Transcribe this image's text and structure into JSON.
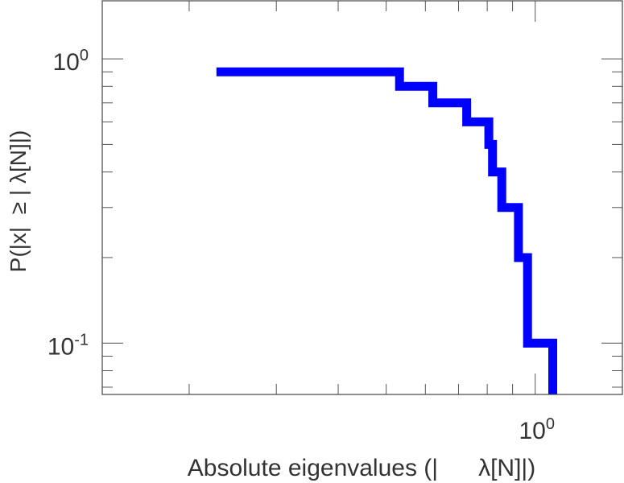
{
  "chart_data": {
    "type": "line",
    "step": true,
    "scale": {
      "x": "log",
      "y": "log"
    },
    "xlim": [
      0.1335,
      1.5
    ],
    "ylim": [
      0.066,
      1.6
    ],
    "xlabel": "Absolute eigenvalues (|      λ[N]|)",
    "ylabel": "P(|x|  ≥ | λ[N]|)",
    "grid": false,
    "x_ticks": [
      {
        "value": 1,
        "base": "10",
        "exp": "0"
      }
    ],
    "y_ticks": [
      {
        "value": 1,
        "base": "10",
        "exp": "0"
      },
      {
        "value": 0.1,
        "base": "10",
        "exp": "-1"
      }
    ],
    "series": [
      {
        "color": "#0000ff",
        "points": [
          {
            "x": 0.227,
            "y": 0.9
          },
          {
            "x": 0.532,
            "y": 0.9
          },
          {
            "x": 0.532,
            "y": 0.8
          },
          {
            "x": 0.621,
            "y": 0.8
          },
          {
            "x": 0.621,
            "y": 0.7
          },
          {
            "x": 0.727,
            "y": 0.7
          },
          {
            "x": 0.727,
            "y": 0.6
          },
          {
            "x": 0.806,
            "y": 0.6
          },
          {
            "x": 0.806,
            "y": 0.5
          },
          {
            "x": 0.82,
            "y": 0.5
          },
          {
            "x": 0.82,
            "y": 0.4
          },
          {
            "x": 0.856,
            "y": 0.4
          },
          {
            "x": 0.856,
            "y": 0.3
          },
          {
            "x": 0.925,
            "y": 0.3
          },
          {
            "x": 0.925,
            "y": 0.2
          },
          {
            "x": 0.965,
            "y": 0.2
          },
          {
            "x": 0.965,
            "y": 0.1
          },
          {
            "x": 1.085,
            "y": 0.1
          },
          {
            "x": 1.085,
            "y": 0.066
          }
        ]
      }
    ]
  }
}
